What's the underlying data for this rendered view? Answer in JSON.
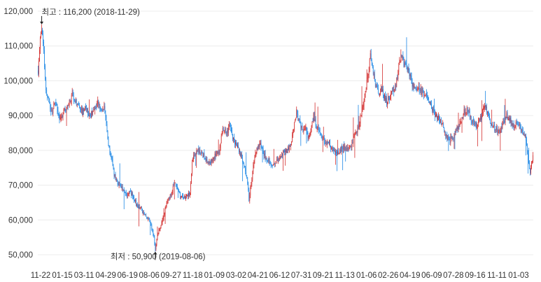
{
  "chart_data": {
    "type": "candlestick",
    "grid": true,
    "ylim": [
      50000,
      120000
    ],
    "y_ticks": [
      {
        "value": 120000,
        "label": "120,000"
      },
      {
        "value": 110000,
        "label": "110,000"
      },
      {
        "value": 100000,
        "label": "100,000"
      },
      {
        "value": 90000,
        "label": "90,000"
      },
      {
        "value": 80000,
        "label": "80,000"
      },
      {
        "value": 70000,
        "label": "70,000"
      },
      {
        "value": 60000,
        "label": "60,000"
      },
      {
        "value": 50000,
        "label": "50,000"
      }
    ],
    "x_tick_labels": [
      "11-22",
      "01-15",
      "03-11",
      "04-29",
      "06-19",
      "08-06",
      "09-27",
      "11-18",
      "01-09",
      "03-02",
      "04-21",
      "06-12",
      "07-31",
      "09-21",
      "11-13",
      "01-06",
      "02-26",
      "04-19",
      "06-09",
      "07-28",
      "09-16",
      "11-11",
      "01-03"
    ],
    "annotations": {
      "high": {
        "text": "최고 : 116,200 (2018-11-29)",
        "value": 116200,
        "x_index": 5
      },
      "low": {
        "text": "최저 : 50,900 (2019-08-06)",
        "value": 50900,
        "x_index": 165
      }
    },
    "colors": {
      "up": "#d32f2f",
      "down": "#1e88e5",
      "grid": "#ececec",
      "axis_text": "#333333"
    },
    "close_path_keypoints": [
      [
        0,
        103000
      ],
      [
        3,
        112000
      ],
      [
        5,
        115000
      ],
      [
        8,
        108000
      ],
      [
        11,
        98000
      ],
      [
        14,
        95000
      ],
      [
        17,
        92000
      ],
      [
        20,
        91000
      ],
      [
        24,
        94000
      ],
      [
        28,
        90000
      ],
      [
        33,
        89000
      ],
      [
        38,
        92000
      ],
      [
        43,
        93000
      ],
      [
        48,
        96000
      ],
      [
        52,
        94000
      ],
      [
        57,
        93000
      ],
      [
        62,
        91000
      ],
      [
        68,
        92000
      ],
      [
        73,
        90000
      ],
      [
        79,
        91000
      ],
      [
        84,
        94000
      ],
      [
        89,
        91000
      ],
      [
        93,
        92000
      ],
      [
        95,
        90000
      ],
      [
        98,
        84000
      ],
      [
        100,
        80000
      ],
      [
        104,
        77000
      ],
      [
        107,
        73000
      ],
      [
        111,
        71000
      ],
      [
        115,
        70000
      ],
      [
        120,
        69000
      ],
      [
        125,
        67000
      ],
      [
        130,
        68000
      ],
      [
        135,
        66000
      ],
      [
        140,
        64000
      ],
      [
        145,
        63000
      ],
      [
        150,
        62000
      ],
      [
        155,
        60000
      ],
      [
        160,
        58000
      ],
      [
        163,
        55000
      ],
      [
        165,
        51500
      ],
      [
        168,
        56000
      ],
      [
        172,
        58000
      ],
      [
        176,
        61000
      ],
      [
        180,
        64000
      ],
      [
        184,
        66000
      ],
      [
        188,
        68000
      ],
      [
        192,
        71000
      ],
      [
        196,
        69000
      ],
      [
        200,
        67000
      ],
      [
        205,
        66000
      ],
      [
        210,
        67000
      ],
      [
        214,
        68000
      ],
      [
        217,
        76000
      ],
      [
        220,
        79000
      ],
      [
        225,
        80000
      ],
      [
        230,
        79000
      ],
      [
        235,
        78000
      ],
      [
        240,
        76000
      ],
      [
        245,
        77000
      ],
      [
        250,
        79000
      ],
      [
        255,
        80000
      ],
      [
        260,
        86000
      ],
      [
        265,
        85000
      ],
      [
        270,
        87000
      ],
      [
        275,
        83000
      ],
      [
        280,
        81000
      ],
      [
        285,
        79000
      ],
      [
        290,
        76000
      ],
      [
        294,
        72000
      ],
      [
        297,
        66000
      ],
      [
        300,
        70000
      ],
      [
        304,
        77000
      ],
      [
        308,
        80000
      ],
      [
        312,
        82000
      ],
      [
        316,
        80000
      ],
      [
        320,
        78000
      ],
      [
        325,
        77000
      ],
      [
        330,
        76000
      ],
      [
        335,
        77000
      ],
      [
        340,
        78000
      ],
      [
        345,
        79000
      ],
      [
        350,
        80000
      ],
      [
        355,
        81000
      ],
      [
        360,
        86000
      ],
      [
        364,
        91000
      ],
      [
        368,
        88000
      ],
      [
        372,
        86000
      ],
      [
        376,
        87000
      ],
      [
        380,
        84000
      ],
      [
        384,
        85000
      ],
      [
        388,
        90000
      ],
      [
        392,
        87000
      ],
      [
        396,
        86000
      ],
      [
        400,
        84000
      ],
      [
        405,
        82000
      ],
      [
        410,
        82000
      ],
      [
        415,
        80000
      ],
      [
        420,
        79000
      ],
      [
        425,
        80000
      ],
      [
        430,
        81000
      ],
      [
        435,
        80000
      ],
      [
        440,
        81000
      ],
      [
        445,
        84000
      ],
      [
        450,
        86000
      ],
      [
        454,
        89000
      ],
      [
        458,
        93000
      ],
      [
        462,
        98000
      ],
      [
        465,
        102000
      ],
      [
        468,
        107000
      ],
      [
        471,
        104000
      ],
      [
        475,
        99000
      ],
      [
        479,
        96000
      ],
      [
        483,
        98000
      ],
      [
        487,
        96000
      ],
      [
        491,
        94000
      ],
      [
        495,
        95000
      ],
      [
        499,
        97000
      ],
      [
        503,
        98000
      ],
      [
        507,
        102000
      ],
      [
        511,
        108000
      ],
      [
        515,
        105000
      ],
      [
        519,
        104000
      ],
      [
        523,
        102000
      ],
      [
        527,
        99000
      ],
      [
        531,
        98000
      ],
      [
        535,
        98000
      ],
      [
        540,
        97000
      ],
      [
        545,
        96000
      ],
      [
        550,
        95000
      ],
      [
        555,
        92000
      ],
      [
        560,
        90000
      ],
      [
        565,
        89000
      ],
      [
        570,
        87000
      ],
      [
        575,
        84000
      ],
      [
        580,
        83000
      ],
      [
        585,
        84000
      ],
      [
        590,
        86000
      ],
      [
        595,
        88000
      ],
      [
        600,
        91000
      ],
      [
        605,
        92000
      ],
      [
        610,
        89000
      ],
      [
        615,
        87000
      ],
      [
        620,
        88000
      ],
      [
        625,
        90000
      ],
      [
        630,
        93000
      ],
      [
        635,
        89000
      ],
      [
        640,
        87000
      ],
      [
        645,
        86000
      ],
      [
        650,
        85000
      ],
      [
        655,
        88000
      ],
      [
        660,
        90000
      ],
      [
        665,
        89000
      ],
      [
        670,
        87000
      ],
      [
        675,
        88000
      ],
      [
        680,
        86000
      ],
      [
        685,
        85000
      ],
      [
        688,
        81000
      ],
      [
        691,
        76000
      ],
      [
        693,
        73500
      ],
      [
        695,
        77000
      ],
      [
        697,
        78500
      ]
    ]
  }
}
